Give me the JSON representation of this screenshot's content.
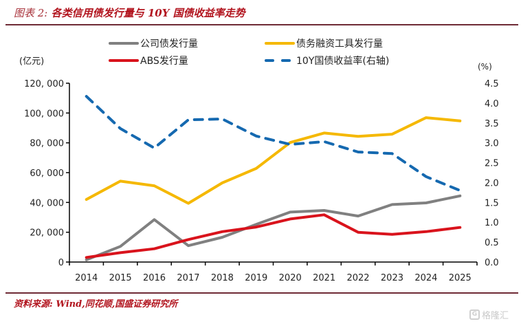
{
  "header": {
    "title_prefix": "图表 2:",
    "title_main": " 各类信用债发行量与 10Y 国债收益率走势"
  },
  "footer": {
    "source": "资料来源: Wind,同花顺,国盛证券研究所"
  },
  "watermark": {
    "icon": "gelonghui-logo-icon",
    "text": "格隆汇"
  },
  "chart_data": {
    "type": "line",
    "title": "各类信用债发行量与 10Y 国债收益率走势",
    "xlabel": "",
    "ylabel": "(亿元)",
    "ylabel_right": "(%)",
    "categories": [
      "2014",
      "2015",
      "2016",
      "2017",
      "2018",
      "2019",
      "2020",
      "2021",
      "2022",
      "2023",
      "2024",
      "2025"
    ],
    "ylim": [
      0,
      120000
    ],
    "yticks": [
      0,
      20000,
      40000,
      60000,
      80000,
      100000,
      120000
    ],
    "ytick_labels": [
      "0",
      "20, 000",
      "40, 000",
      "60, 000",
      "80, 000",
      "100, 000",
      "120, 000"
    ],
    "ylim_right": [
      0,
      4.5
    ],
    "yticks_right": [
      0.0,
      0.5,
      1.0,
      1.5,
      2.0,
      2.5,
      3.0,
      3.5,
      4.0,
      4.5
    ],
    "ytick_labels_right": [
      "0.0",
      "0.5",
      "1.0",
      "1.5",
      "2.0",
      "2.5",
      "3.0",
      "3.5",
      "4.0",
      "4.5"
    ],
    "grid": false,
    "legend_position": "top",
    "series": [
      {
        "name": "公司债发行量",
        "axis": "left",
        "style": "solid",
        "color": "#808080",
        "values": [
          1500,
          10500,
          28500,
          11000,
          16600,
          25300,
          33500,
          34600,
          30900,
          38600,
          39700,
          44400
        ]
      },
      {
        "name": "债务融资工具发行量",
        "axis": "left",
        "style": "solid",
        "color": "#f5b800",
        "values": [
          42000,
          54300,
          51200,
          39400,
          53100,
          62800,
          80200,
          86600,
          84300,
          85800,
          96900,
          94700
        ]
      },
      {
        "name": "ABS发行量",
        "axis": "left",
        "style": "solid",
        "color": "#d9131c",
        "values": [
          3100,
          6300,
          8900,
          15100,
          20400,
          23500,
          28900,
          31700,
          20000,
          18600,
          20400,
          23200
        ]
      },
      {
        "name": "10Y国债收益率(右轴)",
        "axis": "right",
        "style": "dashed",
        "color": "#1569b0",
        "values": [
          4.17,
          3.36,
          2.87,
          3.58,
          3.6,
          3.17,
          2.96,
          3.03,
          2.77,
          2.73,
          2.15,
          1.8
        ]
      }
    ],
    "legend": [
      {
        "label": "公司债发行量",
        "series": 0
      },
      {
        "label": "债务融资工具发行量",
        "series": 1
      },
      {
        "label": "ABS发行量",
        "series": 2
      },
      {
        "label": "10Y国债收益率(右轴)",
        "series": 3
      }
    ]
  }
}
